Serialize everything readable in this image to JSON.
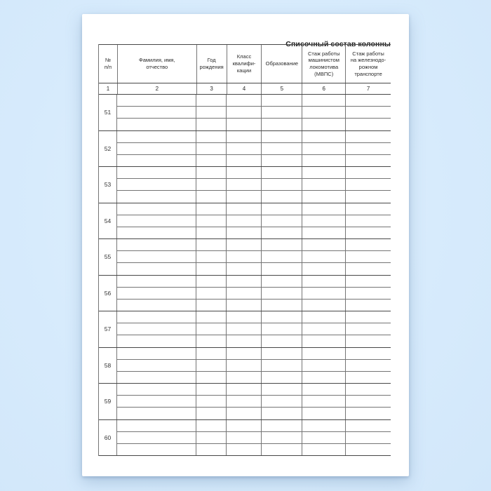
{
  "document": {
    "title": "Списочный состав колонны"
  },
  "table": {
    "columns": [
      {
        "label": "№\nп/п",
        "index": "1"
      },
      {
        "label": "Фамилия, имя,\nотчество",
        "index": "2"
      },
      {
        "label": "Год\nрождения",
        "index": "3"
      },
      {
        "label": "Класс\nквалифи-\nкации",
        "index": "4"
      },
      {
        "label": "Образование",
        "index": "5"
      },
      {
        "label": "Стаж работы\nмашинистом\nлокомотива\n(МВПС)",
        "index": "6"
      },
      {
        "label": "Стаж работы\nна железнодо-\nрожном\nтранспорте",
        "index": "7"
      }
    ],
    "rows": [
      {
        "number": "51"
      },
      {
        "number": "52"
      },
      {
        "number": "53"
      },
      {
        "number": "54"
      },
      {
        "number": "55"
      },
      {
        "number": "56"
      },
      {
        "number": "57"
      },
      {
        "number": "58"
      },
      {
        "number": "59"
      },
      {
        "number": "60"
      }
    ],
    "entry_lines_per_row": 3
  },
  "colors": {
    "canvas_background": "#d7ebfc",
    "page_background": "#ffffff",
    "grid_line_thin": "#757575",
    "grid_line_thick": "#474747",
    "text": "#222222"
  }
}
